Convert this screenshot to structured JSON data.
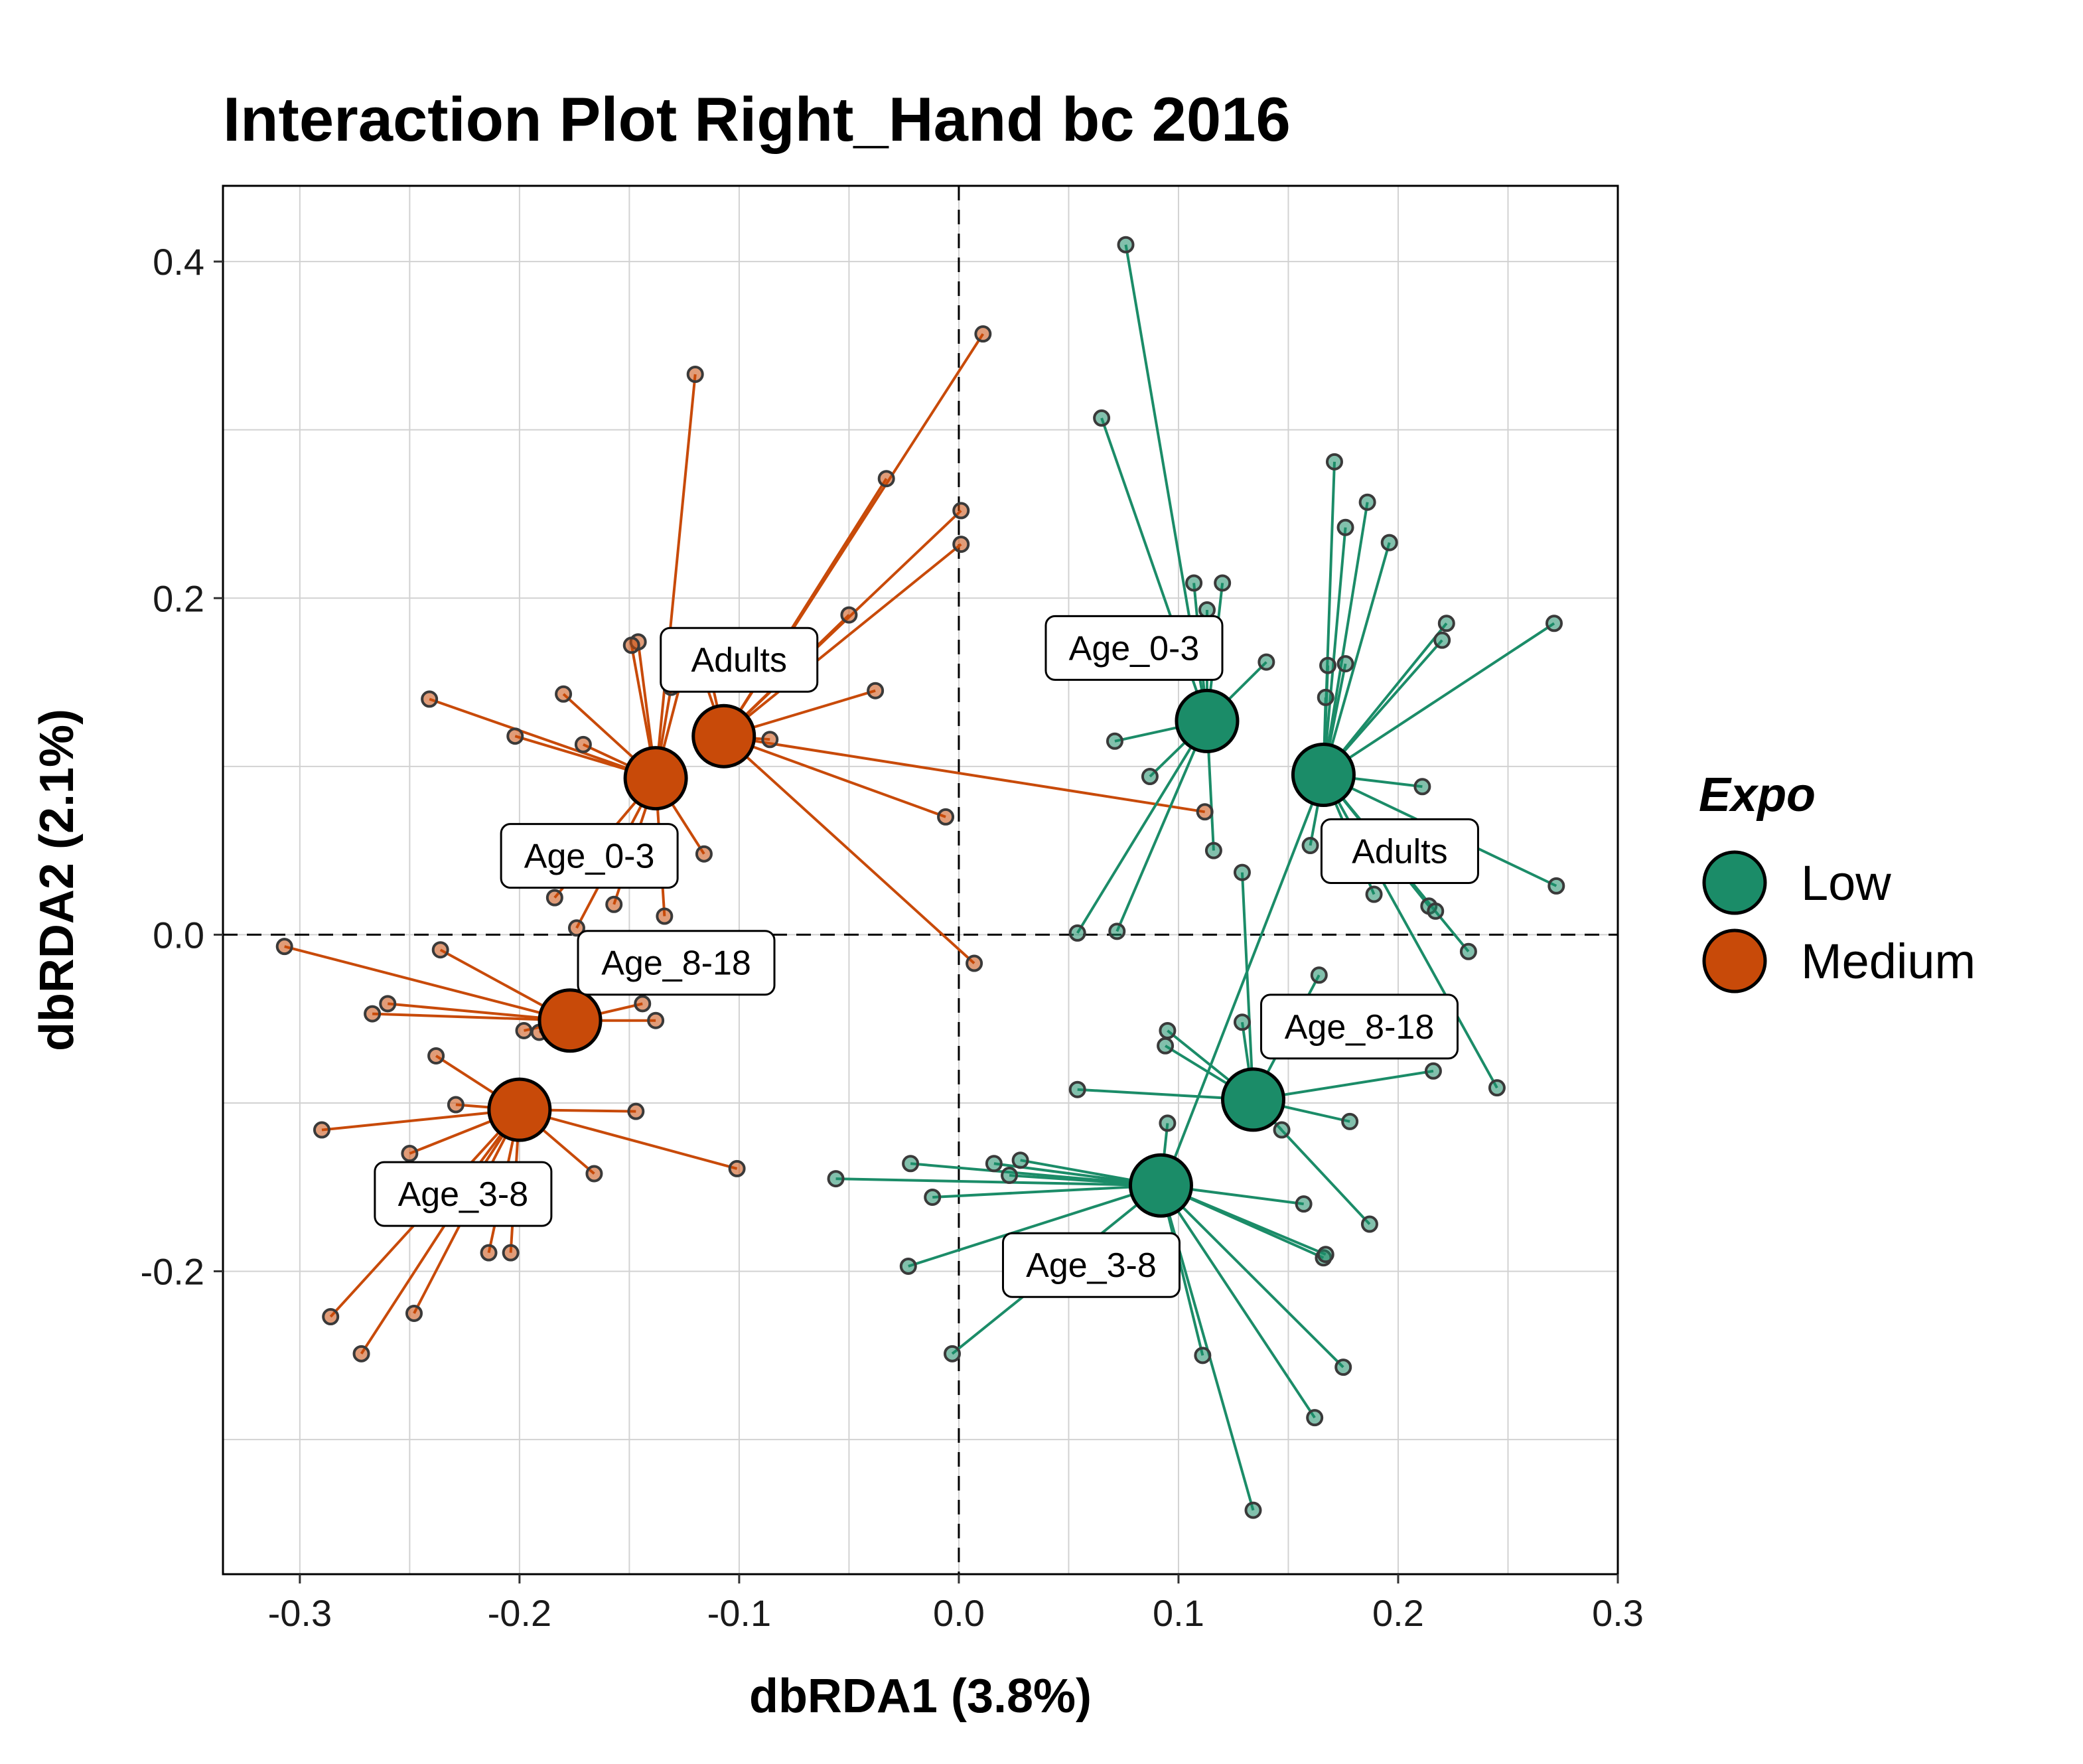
{
  "chart_data": {
    "type": "scatter",
    "title": "Interaction Plot Right_Hand bc 2016",
    "xlabel": "dbRDA1 (3.8%)",
    "ylabel": "dbRDA2 (2.1%)",
    "xlim": [
      -0.335,
      0.3
    ],
    "ylim": [
      -0.38,
      0.445
    ],
    "x_ticks": [
      -0.3,
      -0.2,
      -0.1,
      0.0,
      0.1,
      0.2,
      0.3
    ],
    "x_tick_labels": [
      "-0.3",
      "-0.2",
      "-0.1",
      "0.0",
      "0.1",
      "0.2",
      "0.3"
    ],
    "y_ticks": [
      -0.2,
      0.0,
      0.2,
      0.4
    ],
    "y_tick_labels": [
      "-0.2",
      "0.0",
      "0.2",
      "0.4"
    ],
    "grid": true,
    "reference_lines": {
      "x": 0,
      "y": 0,
      "style": "dashed"
    },
    "legend": {
      "title": "Expo",
      "position": "right",
      "entries": [
        {
          "label": "Low",
          "color": "#1b8c68"
        },
        {
          "label": "Medium",
          "color": "#c84a09"
        }
      ]
    },
    "series": [
      {
        "name": "Medium",
        "color": "#c84a09",
        "groups": [
          {
            "label": "Adults",
            "centroid": [
              -0.107,
              0.118
            ],
            "points": [
              [
                0.011,
                0.357
              ],
              [
                0.001,
                0.252
              ],
              [
                0.001,
                0.232
              ],
              [
                -0.033,
                0.271
              ],
              [
                -0.05,
                0.19
              ],
              [
                -0.038,
                0.145
              ],
              [
                -0.006,
                0.07
              ],
              [
                0.007,
                -0.017
              ],
              [
                0.112,
                0.073
              ],
              [
                -0.086,
                0.116
              ],
              [
                -0.122,
                0.175
              ],
              [
                -0.115,
                0.165
              ]
            ]
          },
          {
            "label": "Age_0-3",
            "centroid": [
              -0.138,
              0.093
            ],
            "points": [
              [
                -0.12,
                0.333
              ],
              [
                -0.146,
                0.174
              ],
              [
                -0.149,
                0.172
              ],
              [
                -0.123,
                0.168
              ],
              [
                -0.131,
                0.147
              ],
              [
                -0.18,
                0.143
              ],
              [
                -0.241,
                0.14
              ],
              [
                -0.202,
                0.118
              ],
              [
                -0.171,
                0.113
              ],
              [
                -0.116,
                0.048
              ],
              [
                -0.157,
                0.018
              ],
              [
                -0.134,
                0.011
              ],
              [
                -0.174,
                0.004
              ],
              [
                -0.184,
                0.022
              ]
            ]
          },
          {
            "label": "Age_8-18",
            "centroid": [
              -0.177,
              -0.051
            ],
            "points": [
              [
                -0.307,
                -0.007
              ],
              [
                -0.236,
                -0.009
              ],
              [
                -0.26,
                -0.041
              ],
              [
                -0.267,
                -0.047
              ],
              [
                -0.138,
                -0.051
              ],
              [
                -0.166,
                -0.023
              ],
              [
                -0.198,
                -0.057
              ],
              [
                -0.191,
                -0.058
              ],
              [
                -0.144,
                -0.041
              ]
            ]
          },
          {
            "label": "Age_3-8",
            "centroid": [
              -0.2,
              -0.104
            ],
            "points": [
              [
                -0.29,
                -0.116
              ],
              [
                -0.238,
                -0.072
              ],
              [
                -0.229,
                -0.101
              ],
              [
                -0.147,
                -0.105
              ],
              [
                -0.166,
                -0.142
              ],
              [
                -0.101,
                -0.139
              ],
              [
                -0.272,
                -0.249
              ],
              [
                -0.286,
                -0.227
              ],
              [
                -0.248,
                -0.225
              ],
              [
                -0.214,
                -0.189
              ],
              [
                -0.204,
                -0.189
              ],
              [
                -0.25,
                -0.13
              ],
              [
                -0.232,
                -0.16
              ]
            ]
          }
        ]
      },
      {
        "name": "Low",
        "color": "#1b8c68",
        "groups": [
          {
            "label": "Age_0-3",
            "centroid": [
              0.113,
              0.127
            ],
            "points": [
              [
                0.076,
                0.41
              ],
              [
                0.065,
                0.307
              ],
              [
                0.12,
                0.209
              ],
              [
                0.113,
                0.193
              ],
              [
                0.107,
                0.209
              ],
              [
                0.071,
                0.115
              ],
              [
                0.087,
                0.094
              ],
              [
                0.116,
                0.05
              ],
              [
                0.054,
                0.001
              ],
              [
                0.072,
                0.002
              ],
              [
                0.14,
                0.162
              ]
            ]
          },
          {
            "label": "Adults",
            "centroid": [
              0.166,
              0.095
            ],
            "points": [
              [
                0.171,
                0.281
              ],
              [
                0.186,
                0.257
              ],
              [
                0.196,
                0.233
              ],
              [
                0.176,
                0.242
              ],
              [
                0.222,
                0.185
              ],
              [
                0.22,
                0.175
              ],
              [
                0.271,
                0.185
              ],
              [
                0.211,
                0.088
              ],
              [
                0.168,
                0.16
              ],
              [
                0.167,
                0.141
              ],
              [
                0.176,
                0.161
              ],
              [
                0.16,
                0.053
              ],
              [
                0.189,
                0.024
              ],
              [
                0.214,
                0.017
              ],
              [
                0.217,
                0.014
              ],
              [
                0.272,
                0.029
              ],
              [
                0.232,
                -0.01
              ],
              [
                0.245,
                -0.091
              ],
              [
                0.094,
                -0.147
              ]
            ]
          },
          {
            "label": "Age_8-18",
            "centroid": [
              0.134,
              -0.098
            ],
            "points": [
              [
                0.054,
                -0.092
              ],
              [
                0.095,
                -0.057
              ],
              [
                0.094,
                -0.066
              ],
              [
                0.129,
                0.037
              ],
              [
                0.164,
                -0.024
              ],
              [
                0.129,
                -0.052
              ],
              [
                0.147,
                -0.116
              ],
              [
                0.178,
                -0.111
              ],
              [
                0.216,
                -0.081
              ],
              [
                0.187,
                -0.172
              ]
            ]
          },
          {
            "label": "Age_3-8",
            "centroid": [
              0.092,
              -0.149
            ],
            "points": [
              [
                -0.056,
                -0.145
              ],
              [
                -0.022,
                -0.136
              ],
              [
                -0.012,
                -0.156
              ],
              [
                -0.023,
                -0.197
              ],
              [
                -0.003,
                -0.249
              ],
              [
                0.016,
                -0.136
              ],
              [
                0.023,
                -0.143
              ],
              [
                0.028,
                -0.134
              ],
              [
                0.111,
                -0.25
              ],
              [
                0.134,
                -0.342
              ],
              [
                0.157,
                -0.16
              ],
              [
                0.166,
                -0.192
              ],
              [
                0.162,
                -0.287
              ],
              [
                0.175,
                -0.257
              ],
              [
                0.167,
                -0.19
              ],
              [
                0.095,
                -0.112
              ]
            ]
          }
        ]
      }
    ]
  }
}
